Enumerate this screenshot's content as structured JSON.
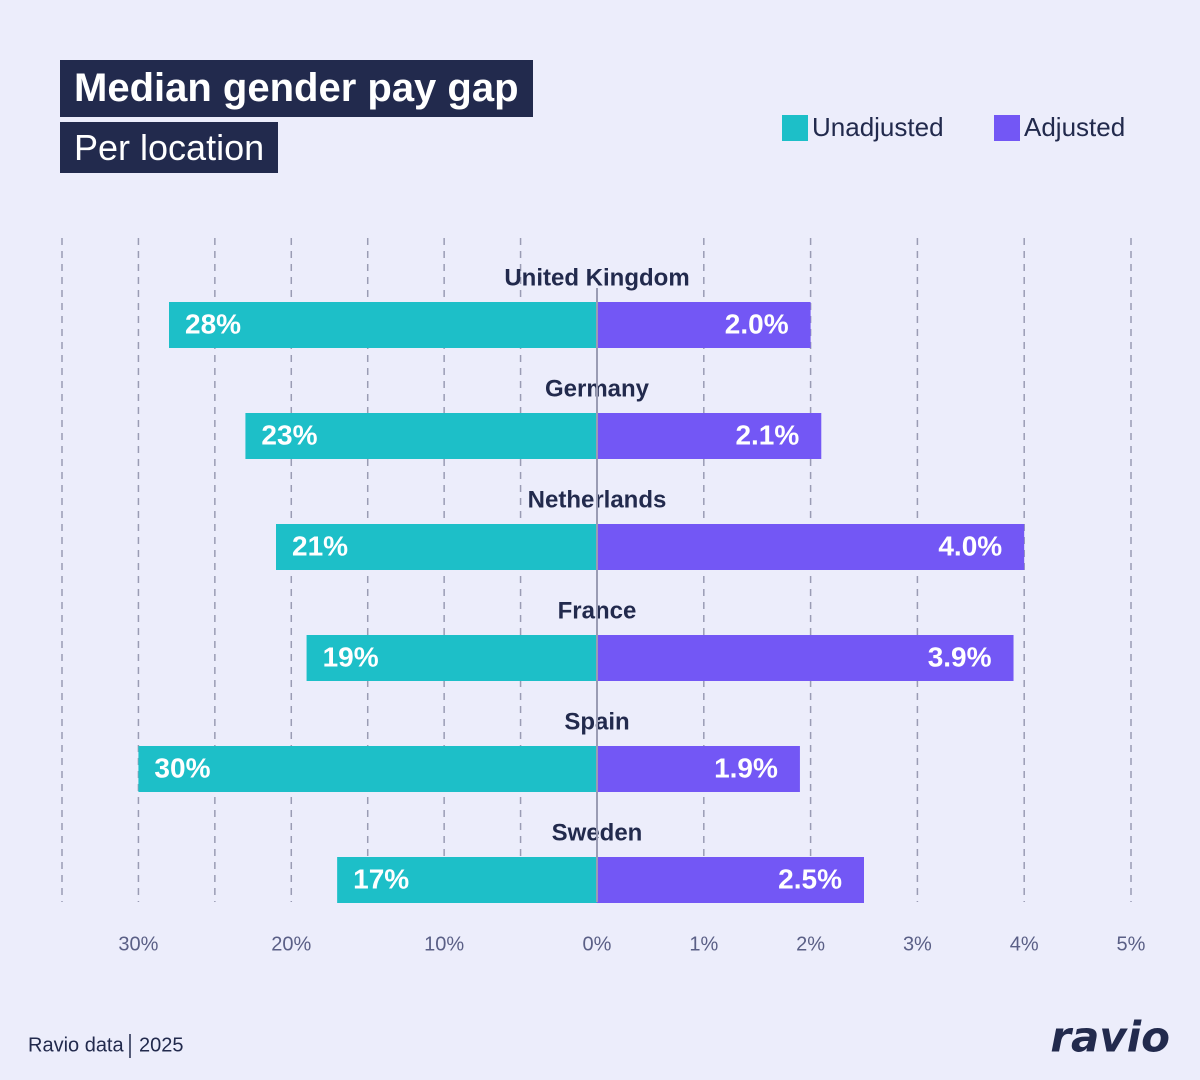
{
  "chart_data": {
    "type": "butterfly",
    "title": "Median gender pay gap",
    "subtitle": "Per location",
    "categories": [
      "United Kingdom",
      "Germany",
      "Netherlands",
      "France",
      "Spain",
      "Sweden"
    ],
    "series": [
      {
        "name": "Unadjusted",
        "color": "#1dbfc8",
        "axis": "x",
        "values": [
          28,
          23,
          21,
          19,
          30,
          17
        ],
        "value_labels": [
          "28%",
          "23%",
          "21%",
          "19%",
          "30%",
          "17%"
        ]
      },
      {
        "name": "Adjusted",
        "color": "#7357f5",
        "axis": "x2",
        "values": [
          2.0,
          2.1,
          4.0,
          3.9,
          1.9,
          2.5
        ],
        "value_labels": [
          "2.0%",
          "2.1%",
          "4.0%",
          "3.9%",
          "1.9%",
          "2.5%"
        ]
      }
    ],
    "xlim": [
      35,
      0
    ],
    "xticks": [
      {
        "value": 30,
        "label": "30%"
      },
      {
        "value": 20,
        "label": "20%"
      },
      {
        "value": 10,
        "label": "10%"
      },
      {
        "value": 0,
        "label": "0%"
      }
    ],
    "xgrid": [
      35,
      30,
      25,
      20,
      15,
      10,
      5
    ],
    "x2lim": [
      0,
      5
    ],
    "x2ticks": [
      {
        "value": 1,
        "label": "1%"
      },
      {
        "value": 2,
        "label": "2%"
      },
      {
        "value": 3,
        "label": "3%"
      },
      {
        "value": 4,
        "label": "4%"
      },
      {
        "value": 5,
        "label": "5%"
      }
    ],
    "grid": true,
    "legend": "top-right"
  },
  "footer": {
    "source": "Ravio data",
    "year": "2025",
    "logo": "ravio"
  }
}
